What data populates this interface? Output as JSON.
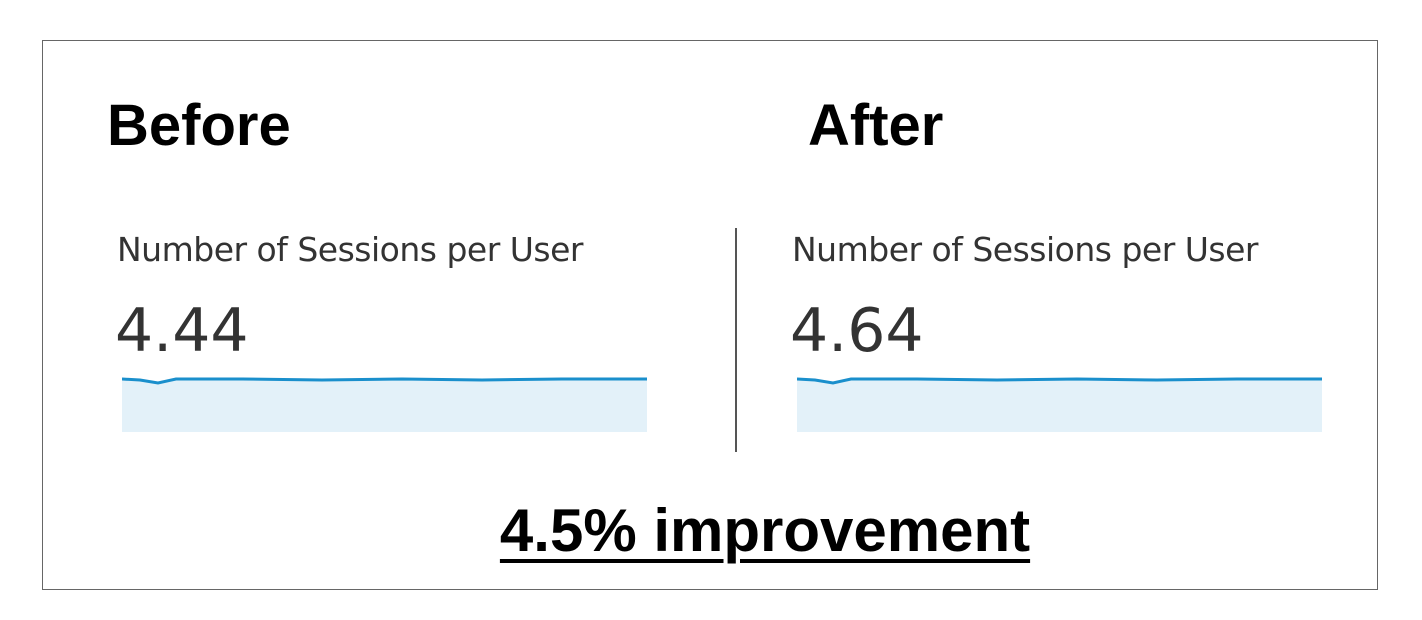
{
  "panels": [
    {
      "heading": "Before",
      "metric_label": "Number of Sessions per User",
      "value": 4.44
    },
    {
      "heading": "After",
      "metric_label": "Number of Sessions per User",
      "value": 4.64
    }
  ],
  "footer": "4.5% improvement"
}
